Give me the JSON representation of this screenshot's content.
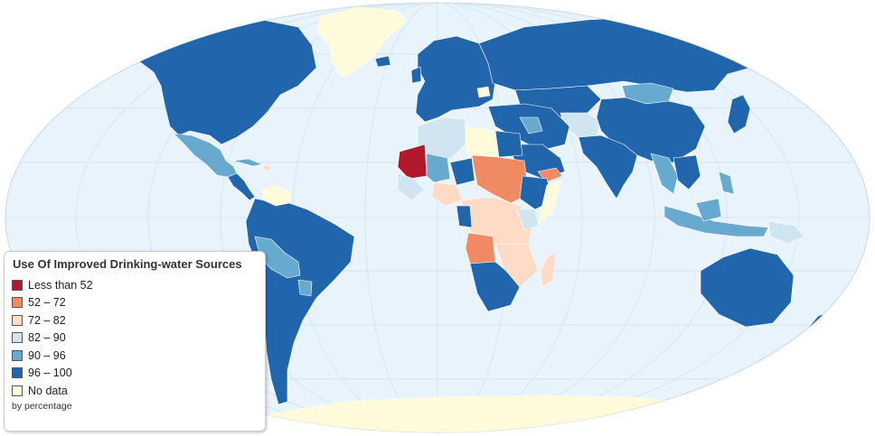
{
  "map": {
    "ocean_color": "#e8f3fb",
    "graticule_color": "#cfe2f0",
    "no_data_color": "#fdfbd9"
  },
  "legend": {
    "title": "Use Of Improved Drinking-water Sources",
    "note": "by percentage",
    "items": [
      {
        "label": "Less than 52",
        "color": "#b2182b"
      },
      {
        "label": "52 – 72",
        "color": "#ef8a62"
      },
      {
        "label": "72 – 82",
        "color": "#fddbc7"
      },
      {
        "label": "82 – 90",
        "color": "#d1e5f0"
      },
      {
        "label": "90 – 96",
        "color": "#67a9cf"
      },
      {
        "label": "96 – 100",
        "color": "#2166ac"
      },
      {
        "label": "No data",
        "color": "#fdfbd9"
      }
    ]
  }
}
